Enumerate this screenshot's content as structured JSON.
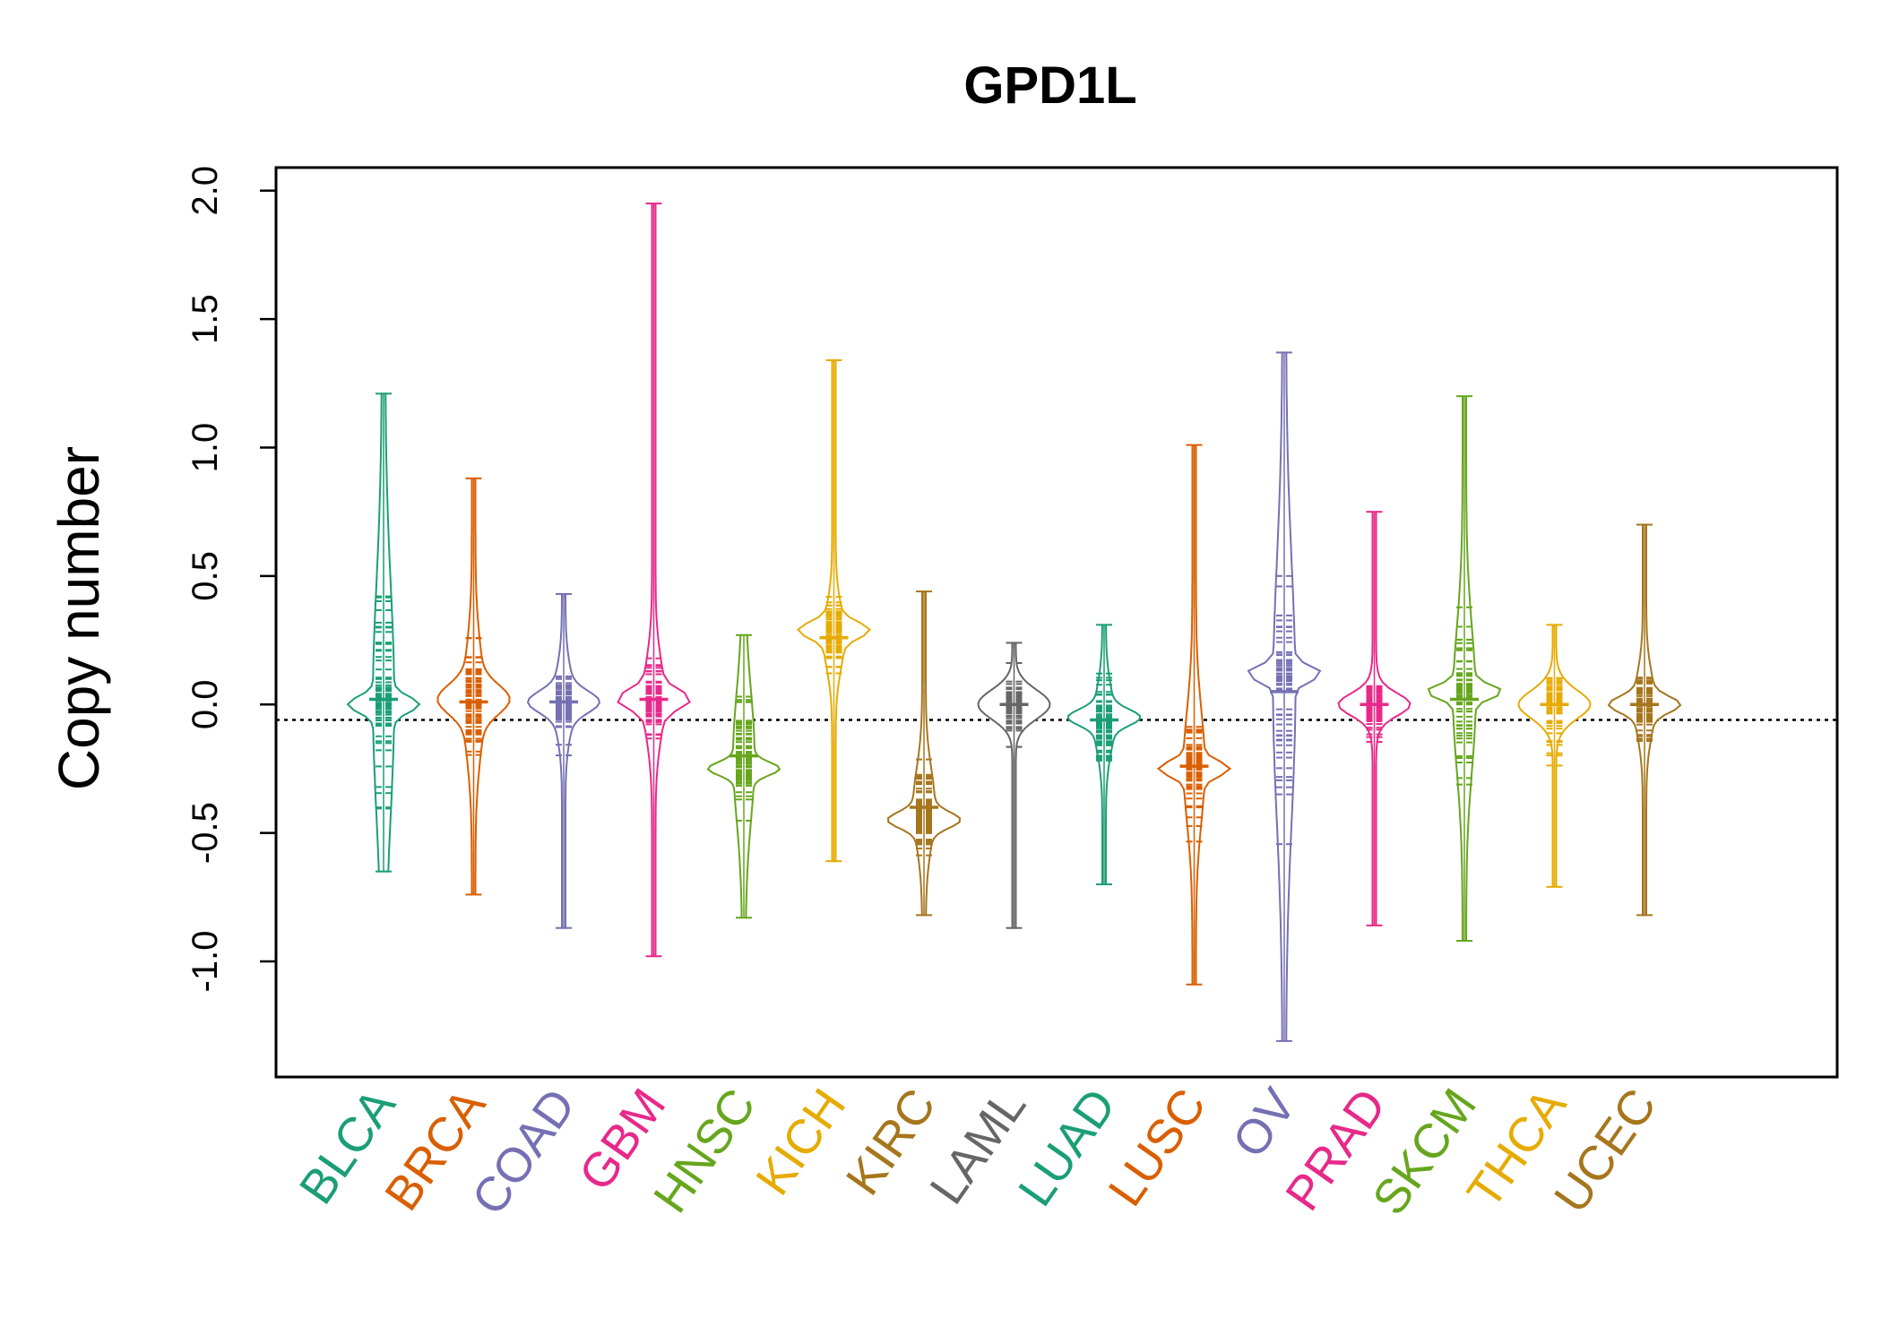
{
  "chart_data": {
    "type": "beanplot",
    "title": "GPD1L",
    "xlabel": "",
    "ylabel": "Copy number",
    "ylim": [
      -1.45,
      2.09
    ],
    "yticks": [
      -1.0,
      -0.5,
      0.0,
      0.5,
      1.0,
      1.5,
      2.0
    ],
    "ytick_labels": [
      "-1.0",
      "-0.5",
      "0.0",
      "0.5",
      "1.0",
      "1.5",
      "2.0"
    ],
    "reference_line": -0.06,
    "grid": false,
    "legend": "none",
    "categories": [
      "BLCA",
      "BRCA",
      "COAD",
      "GBM",
      "HNSC",
      "KICH",
      "KIRC",
      "LAML",
      "LUAD",
      "LUSC",
      "OV",
      "PRAD",
      "SKCM",
      "THCA",
      "UCEC"
    ],
    "colors": [
      "#1B9E77",
      "#D95F02",
      "#7570B3",
      "#E7298A",
      "#66A61E",
      "#E6AB02",
      "#A6761D",
      "#666666",
      "#1B9E77",
      "#D95F02",
      "#7570B3",
      "#E7298A",
      "#66A61E",
      "#E6AB02",
      "#A6761D"
    ],
    "series": [
      {
        "category": "BLCA",
        "median": 0.02,
        "min": -0.65,
        "max": 1.21,
        "mode": 0.0,
        "peak_width": 0.03,
        "spread": 0.45
      },
      {
        "category": "BRCA",
        "median": 0.01,
        "min": -0.74,
        "max": 0.88,
        "mode": 0.02,
        "peak_width": 0.055,
        "spread": 0.2
      },
      {
        "category": "COAD",
        "median": 0.01,
        "min": -0.87,
        "max": 0.43,
        "mode": 0.01,
        "peak_width": 0.04,
        "spread": 0.12
      },
      {
        "category": "GBM",
        "median": 0.02,
        "min": -0.98,
        "max": 1.95,
        "mode": 0.02,
        "peak_width": 0.035,
        "spread": 0.15
      },
      {
        "category": "HNSC",
        "median": -0.2,
        "min": -0.83,
        "max": 0.27,
        "mode": -0.25,
        "peak_width": 0.025,
        "spread": 0.25
      },
      {
        "category": "KICH",
        "median": 0.26,
        "min": -0.61,
        "max": 1.34,
        "mode": 0.29,
        "peak_width": 0.03,
        "spread": 0.12
      },
      {
        "category": "KIRC",
        "median": -0.4,
        "min": -0.82,
        "max": 0.44,
        "mode": -0.45,
        "peak_width": 0.03,
        "spread": 0.15
      },
      {
        "category": "LAML",
        "median": 0.0,
        "min": -0.87,
        "max": 0.24,
        "mode": 0.0,
        "peak_width": 0.06,
        "spread": 0.05
      },
      {
        "category": "LUAD",
        "median": -0.06,
        "min": -0.7,
        "max": 0.31,
        "mode": -0.05,
        "peak_width": 0.03,
        "spread": 0.12
      },
      {
        "category": "LUSC",
        "median": -0.24,
        "min": -1.09,
        "max": 1.01,
        "mode": -0.25,
        "peak_width": 0.028,
        "spread": 0.22
      },
      {
        "category": "OV",
        "median": 0.05,
        "min": -1.31,
        "max": 1.37,
        "mode": 0.12,
        "peak_width": 0.028,
        "spread": 0.5
      },
      {
        "category": "PRAD",
        "median": 0.0,
        "min": -0.86,
        "max": 0.75,
        "mode": 0.0,
        "peak_width": 0.04,
        "spread": 0.07
      },
      {
        "category": "SKCM",
        "median": 0.02,
        "min": -0.92,
        "max": 1.2,
        "mode": 0.05,
        "peak_width": 0.025,
        "spread": 0.28
      },
      {
        "category": "THCA",
        "median": 0.0,
        "min": -0.71,
        "max": 0.31,
        "mode": 0.0,
        "peak_width": 0.065,
        "spread": 0.04
      },
      {
        "category": "UCEC",
        "median": 0.0,
        "min": -0.82,
        "max": 0.7,
        "mode": 0.0,
        "peak_width": 0.03,
        "spread": 0.12
      }
    ]
  }
}
